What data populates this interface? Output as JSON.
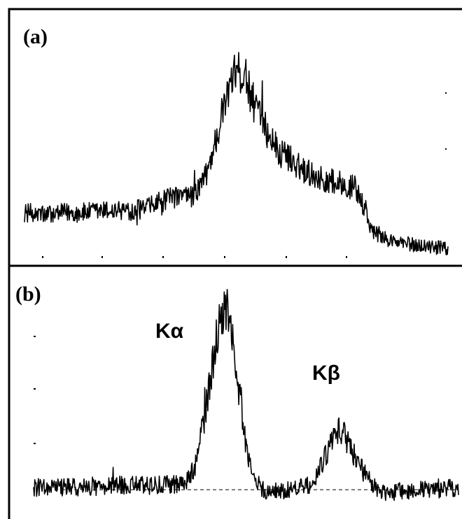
{
  "panels": [
    {
      "label": "(a)"
    },
    {
      "label": "(b)"
    }
  ],
  "annotations": {
    "k_alpha": "Kα",
    "k_beta": "Kβ"
  },
  "colors": {
    "line": "#000000",
    "background": "#ffffff"
  },
  "chart_data": [
    {
      "type": "line",
      "panel": "(a)",
      "title": "",
      "xlabel": "",
      "ylabel": "",
      "x_range": [
        0,
        100
      ],
      "ylim": [
        0,
        100
      ],
      "grid": false,
      "series": [
        {
          "noise": 5,
          "x": [
            0,
            5,
            10,
            15,
            20,
            25,
            28,
            30,
            35,
            40,
            43,
            46,
            48,
            50,
            52,
            54,
            56,
            58,
            60,
            63,
            66,
            70,
            74,
            78,
            80,
            82,
            85,
            88,
            92,
            96,
            100
          ],
          "values": [
            20,
            19,
            20,
            20,
            21,
            21,
            22,
            23,
            27,
            28,
            38,
            60,
            76,
            86,
            84,
            72,
            62,
            56,
            48,
            45,
            40,
            36,
            34,
            32,
            23,
            12,
            8,
            6,
            5,
            4,
            3
          ]
        }
      ]
    },
    {
      "type": "line",
      "panel": "(b)",
      "title": "",
      "xlabel": "",
      "ylabel": "",
      "x_range": [
        0,
        100
      ],
      "ylim": [
        0,
        100
      ],
      "grid": false,
      "baseline": 11,
      "series": [
        {
          "noise": 5,
          "x": [
            0,
            10,
            20,
            30,
            36,
            38,
            40,
            42,
            44,
            46,
            48,
            50,
            52,
            54,
            56,
            60,
            65,
            68,
            70,
            72,
            74,
            76,
            78,
            80,
            82,
            85,
            90,
            95,
            100
          ],
          "values": [
            12,
            12,
            13,
            13,
            14,
            22,
            40,
            64,
            90,
            86,
            60,
            30,
            15,
            11,
            10,
            11,
            13,
            22,
            32,
            38,
            32,
            24,
            18,
            12,
            10,
            10,
            11,
            11,
            12
          ]
        }
      ]
    }
  ]
}
